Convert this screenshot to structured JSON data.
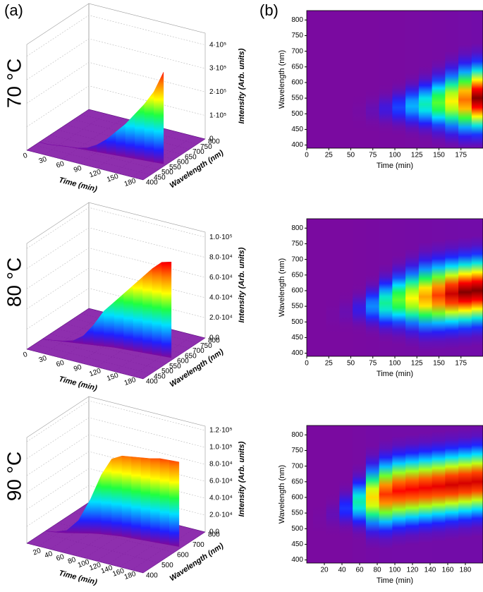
{
  "panel_labels": [
    "(a)",
    "(b)"
  ],
  "chart_data": [
    {
      "type": "surface3d",
      "title": "70 °C",
      "xlabel": "Time (min)",
      "ylabel": "Wavelength (nm)",
      "zlabel": "Intensity (Arb. units)",
      "x": [
        0,
        15,
        30,
        45,
        60,
        75,
        90,
        105,
        120,
        135,
        150,
        165,
        180,
        195
      ],
      "values": [
        0,
        0,
        0,
        0,
        2000,
        10000,
        30000,
        60000,
        100000,
        140000,
        190000,
        240000,
        300000,
        390000
      ],
      "xlim": [
        0,
        200
      ],
      "ylim": [
        400,
        800
      ],
      "zlim": [
        0,
        450000
      ],
      "xticks": [
        0,
        30,
        60,
        90,
        120,
        150,
        180
      ],
      "yticks": [
        400,
        450,
        500,
        550,
        600,
        650,
        700,
        750,
        800
      ],
      "zticks": [
        0,
        {
          "value": 100000,
          "label": "1·10⁵"
        },
        {
          "value": 200000,
          "label": "2·10⁵"
        },
        {
          "value": 300000,
          "label": "3·10⁵"
        },
        {
          "value": 400000,
          "label": "4·10⁵"
        }
      ]
    },
    {
      "type": "contour",
      "xlabel": "Time (min)",
      "ylabel": "Wavelength (nm)",
      "x": [
        0,
        15,
        30,
        45,
        60,
        75,
        90,
        105,
        120,
        135,
        150,
        165,
        180,
        195
      ],
      "values": [
        480,
        480,
        490,
        500,
        505,
        510,
        515,
        520,
        525,
        530,
        535,
        540,
        545,
        550
      ],
      "xlim": [
        0,
        200
      ],
      "ylim": [
        390,
        830
      ],
      "xticks": [
        0,
        25,
        50,
        75,
        100,
        125,
        150,
        175
      ],
      "yticks": [
        400,
        450,
        500,
        550,
        600,
        650,
        700,
        750,
        800
      ]
    },
    {
      "type": "surface3d",
      "title": "80 °C",
      "xlabel": "Time (min)",
      "ylabel": "Wavelength (nm)",
      "zlabel": "Intensity (Arb. units)",
      "x": [
        0,
        15,
        30,
        45,
        60,
        75,
        90,
        105,
        120,
        135,
        150,
        165,
        180,
        195
      ],
      "values": [
        0,
        0,
        500,
        2000,
        8000,
        20000,
        35000,
        45000,
        55000,
        65000,
        75000,
        85000,
        93000,
        95000
      ],
      "xlim": [
        0,
        200
      ],
      "ylim": [
        400,
        800
      ],
      "zlim": [
        0,
        105000
      ],
      "xticks": [
        0,
        30,
        60,
        90,
        120,
        150,
        180
      ],
      "yticks": [
        400,
        450,
        500,
        550,
        600,
        650,
        700,
        750,
        800
      ],
      "zticks": [
        {
          "value": 0,
          "label": "0.0"
        },
        {
          "value": 20000,
          "label": "2.0·10⁴"
        },
        {
          "value": 40000,
          "label": "4.0·10⁴"
        },
        {
          "value": 60000,
          "label": "6.0·10⁴"
        },
        {
          "value": 80000,
          "label": "8.0·10⁴"
        },
        {
          "value": 100000,
          "label": "1.0·10⁵"
        }
      ]
    },
    {
      "type": "contour",
      "xlabel": "Time (min)",
      "ylabel": "Wavelength (nm)",
      "x": [
        0,
        15,
        30,
        45,
        60,
        75,
        90,
        105,
        120,
        135,
        150,
        165,
        180,
        195
      ],
      "values": [
        500,
        510,
        520,
        530,
        540,
        550,
        560,
        570,
        575,
        580,
        585,
        590,
        595,
        600
      ],
      "xlim": [
        0,
        200
      ],
      "ylim": [
        390,
        830
      ],
      "xticks": [
        0,
        25,
        50,
        75,
        100,
        125,
        150,
        175
      ],
      "yticks": [
        400,
        450,
        500,
        550,
        600,
        650,
        700,
        750,
        800
      ]
    },
    {
      "type": "surface3d",
      "title": "90 °C",
      "xlabel": "Time (min)",
      "ylabel": "Wavelength (nm)",
      "zlabel": "Intensity (Arb. units)",
      "x": [
        0,
        15,
        30,
        45,
        60,
        75,
        90,
        105,
        120,
        135,
        150,
        165,
        180,
        195
      ],
      "values": [
        0,
        500,
        3000,
        15000,
        40000,
        70000,
        90000,
        95000,
        96000,
        97000,
        98000,
        100000,
        100000,
        100000
      ],
      "xlim": [
        0,
        200
      ],
      "ylim": [
        400,
        800
      ],
      "zlim": [
        0,
        125000
      ],
      "xticks": [
        20,
        40,
        60,
        80,
        100,
        120,
        140,
        160,
        180
      ],
      "yticks": [
        400,
        500,
        600,
        700,
        800
      ],
      "zticks": [
        {
          "value": 0,
          "label": "0.0"
        },
        {
          "value": 20000,
          "label": "2.0·10⁴"
        },
        {
          "value": 40000,
          "label": "4.0·10⁴"
        },
        {
          "value": 60000,
          "label": "6.0·10⁴"
        },
        {
          "value": 80000,
          "label": "8.0·10⁴"
        },
        {
          "value": 100000,
          "label": "1.0·10⁵"
        },
        {
          "value": 120000,
          "label": "1.2·10⁵"
        }
      ]
    },
    {
      "type": "contour",
      "xlabel": "Time (min)",
      "ylabel": "Wavelength (nm)",
      "x": [
        0,
        15,
        30,
        45,
        60,
        75,
        90,
        105,
        120,
        135,
        150,
        165,
        180,
        195
      ],
      "values": [
        520,
        530,
        545,
        565,
        585,
        600,
        610,
        620,
        625,
        630,
        635,
        640,
        645,
        650
      ],
      "xlim": [
        0,
        200
      ],
      "ylim": [
        390,
        830
      ],
      "xticks": [
        20,
        40,
        60,
        80,
        100,
        120,
        140,
        160,
        180
      ],
      "yticks": [
        400,
        450,
        500,
        550,
        600,
        650,
        700,
        750,
        800
      ]
    }
  ]
}
